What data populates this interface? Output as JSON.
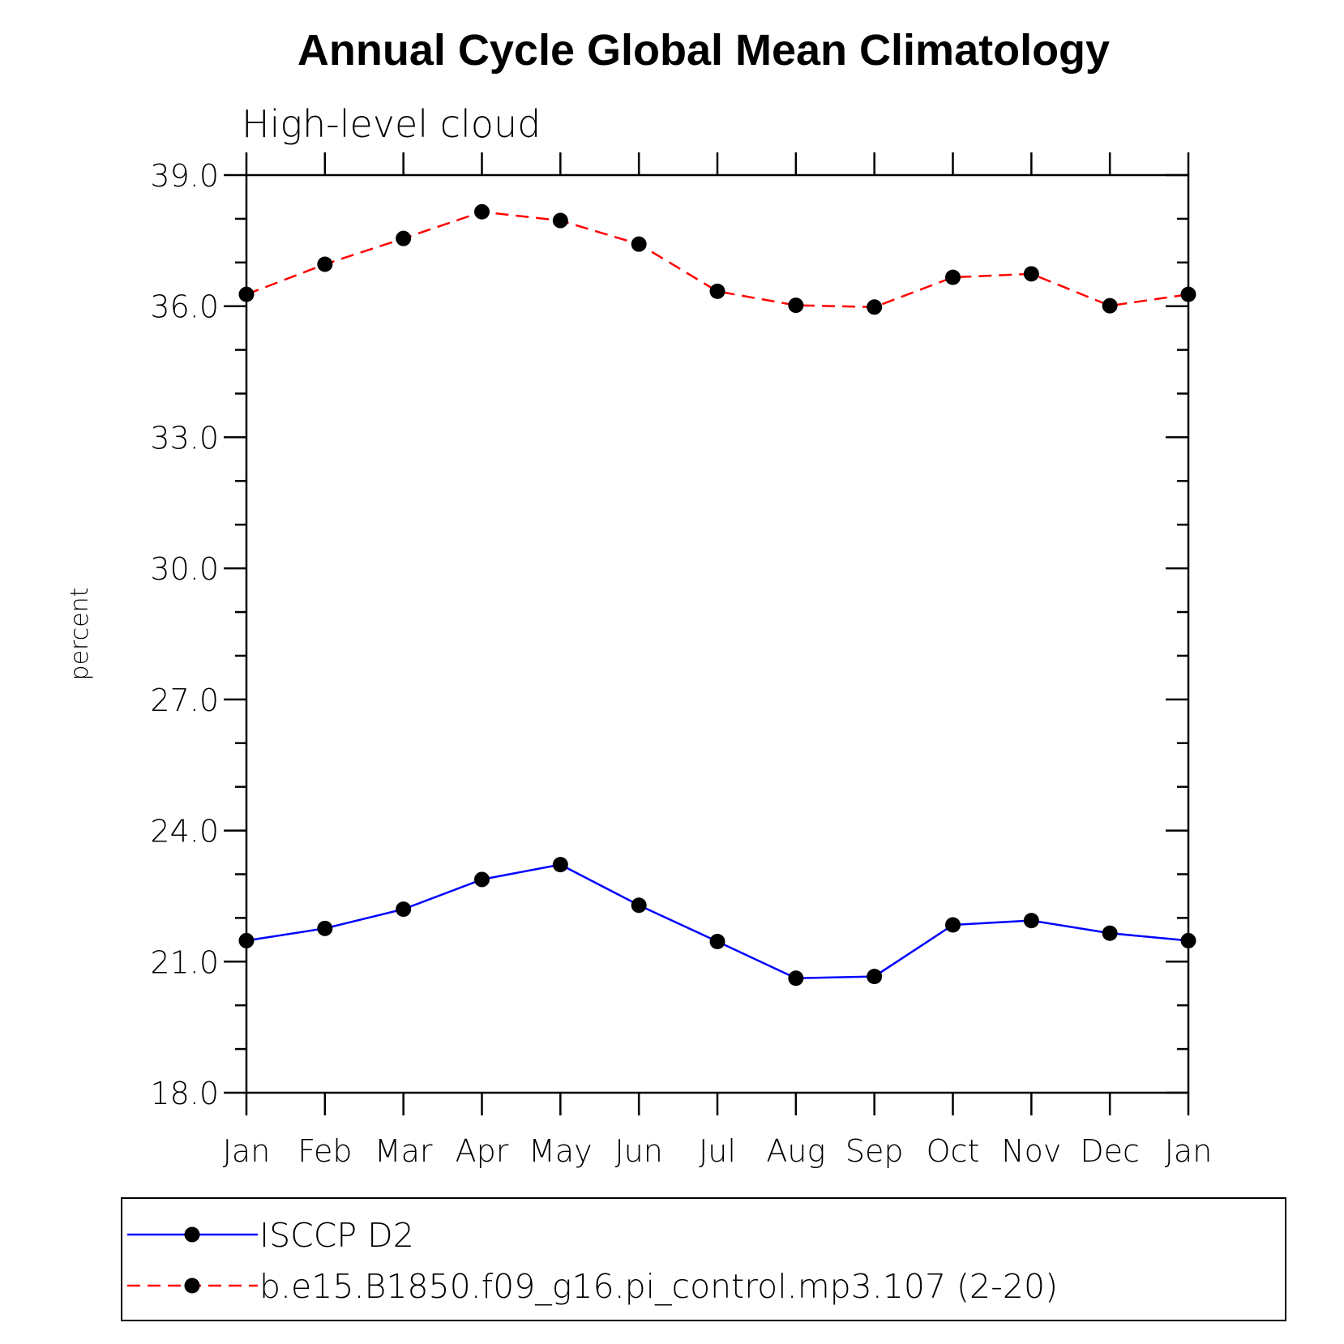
{
  "chart_data": {
    "type": "line",
    "title": "Annual Cycle Global Mean Climatology",
    "subtitle": "High-level cloud",
    "xlabel": "",
    "ylabel": "percent",
    "categories": [
      "Jan",
      "Feb",
      "Mar",
      "Apr",
      "May",
      "Jun",
      "Jul",
      "Aug",
      "Sep",
      "Oct",
      "Nov",
      "Dec",
      "Jan"
    ],
    "ylim": [
      18.0,
      39.0
    ],
    "yticks": [
      "18.0",
      "21.0",
      "24.0",
      "27.0",
      "30.0",
      "33.0",
      "36.0",
      "39.0"
    ],
    "ytick_values": [
      18,
      21,
      24,
      27,
      30,
      33,
      36,
      39
    ],
    "grid": false,
    "legend_position": "bottom",
    "series": [
      {
        "name": "ISCCP D2",
        "color": "#0000ff",
        "line_style": "solid",
        "marker": "filled-circle",
        "values": [
          21.48,
          21.76,
          22.2,
          22.88,
          23.22,
          22.29,
          21.46,
          20.62,
          20.66,
          21.84,
          21.94,
          21.65,
          21.48
        ]
      },
      {
        "name": "b.e15.B1850.f09_g16.pi_control.mp3.107 (2-20)",
        "color": "#ff0000",
        "line_style": "dashed",
        "marker": "filled-circle",
        "values": [
          36.27,
          36.96,
          37.55,
          38.16,
          37.96,
          37.42,
          36.34,
          36.02,
          35.98,
          36.66,
          36.74,
          36.01,
          36.27
        ]
      }
    ]
  }
}
